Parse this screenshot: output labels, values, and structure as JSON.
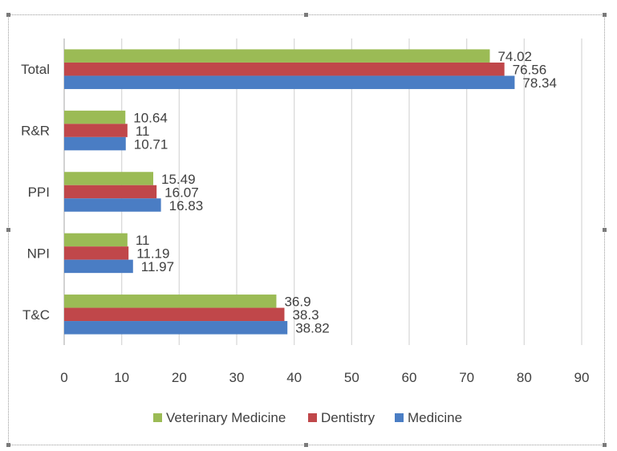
{
  "chart_data": {
    "type": "bar",
    "orientation": "horizontal",
    "categories": [
      "T&C",
      "NPI",
      "PPI",
      "R&R",
      "Total"
    ],
    "series": [
      {
        "name": "Medicine",
        "color": "#4a7dc4",
        "values": [
          38.82,
          11.97,
          16.83,
          10.71,
          78.34
        ]
      },
      {
        "name": "Dentistry",
        "color": "#c0474a",
        "values": [
          38.3,
          11.19,
          16.07,
          11,
          76.56
        ]
      },
      {
        "name": "Veterinary Medicine",
        "color": "#9bbb55",
        "values": [
          36.9,
          11,
          15.49,
          10.64,
          74.02
        ]
      }
    ],
    "data_labels": {
      "Medicine": [
        "38.82",
        "11.97",
        "16.83",
        "10.71",
        "78.34"
      ],
      "Dentistry": [
        "38.3",
        "11.19",
        "16.07",
        "11",
        "76.56"
      ],
      "Veterinary Medicine": [
        "36.9",
        "11",
        "15.49",
        "10.64",
        "74.02"
      ]
    },
    "xlim": [
      0,
      90
    ],
    "xticks": [
      0,
      10,
      20,
      30,
      40,
      50,
      60,
      70,
      80,
      90
    ],
    "xtick_labels": [
      "0",
      "10",
      "20",
      "30",
      "40",
      "50",
      "60",
      "70",
      "80",
      "90"
    ],
    "grid": "vertical",
    "legend": {
      "position": "bottom",
      "order": [
        "Veterinary Medicine",
        "Dentistry",
        "Medicine"
      ],
      "entries": [
        "Veterinary Medicine",
        "Dentistry",
        "Medicine"
      ]
    },
    "title": "",
    "xlabel": "",
    "ylabel": ""
  }
}
